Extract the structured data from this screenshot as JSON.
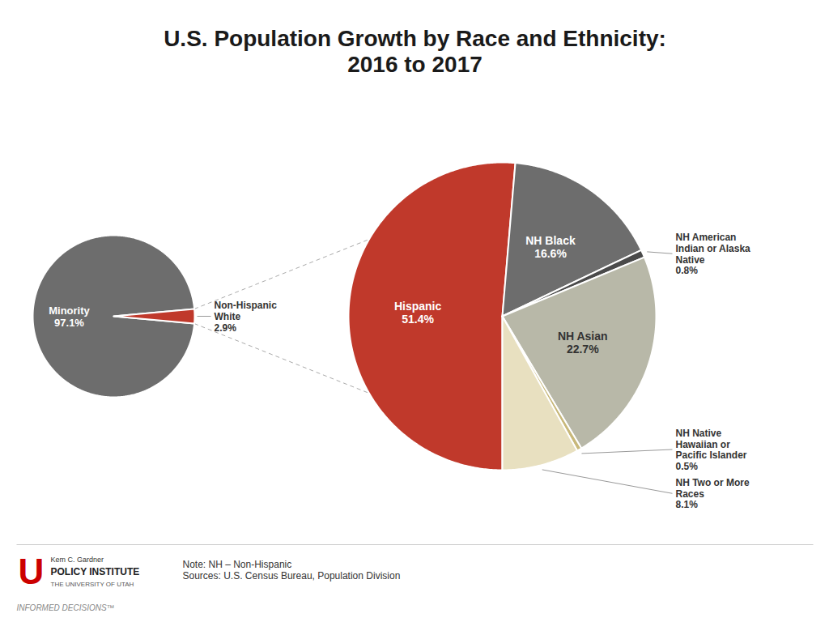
{
  "chart_data": [
    {
      "type": "pie",
      "title": "U.S. Population Growth by Race and Ethnicity:\n2016 to 2017",
      "categories": [
        "Minority",
        "Non-Hispanic White"
      ],
      "values": [
        97.1,
        2.9
      ],
      "value_labels": [
        "97.1%",
        "2.9%"
      ],
      "colors": [
        "#6d6d6d",
        "#c0392b"
      ],
      "data_labels": true,
      "annotations": [
        "Note: NH – Non-Hispanic\nSources: U.S. Census Bureau, Population Division",
        "INFORMED DECISIONS™",
        "U",
        "Kem C. Gardner",
        "POLICY INSTITUTE",
        "THE UNIVERSITY OF UTAH"
      ]
    },
    {
      "type": "pie",
      "categories": [
        "Hispanic",
        "NH Black",
        "NH American Indian or Alaska Native",
        "NH Asian",
        "NH Native Hawaiian or Pacific Islander",
        "NH Two or More Races"
      ],
      "values": [
        51.4,
        16.6,
        0.8,
        22.7,
        0.5,
        8.1
      ],
      "value_labels": [
        "51.4%",
        "16.6%",
        "0.8%",
        "22.7%",
        "0.5%",
        "8.1%"
      ],
      "colors": [
        "#c0392b",
        "#6d6d6d",
        "#4a4a4a",
        "#b8b8a8",
        "#c8b87a",
        "#e8e0c0"
      ],
      "data_labels": true
    }
  ]
}
